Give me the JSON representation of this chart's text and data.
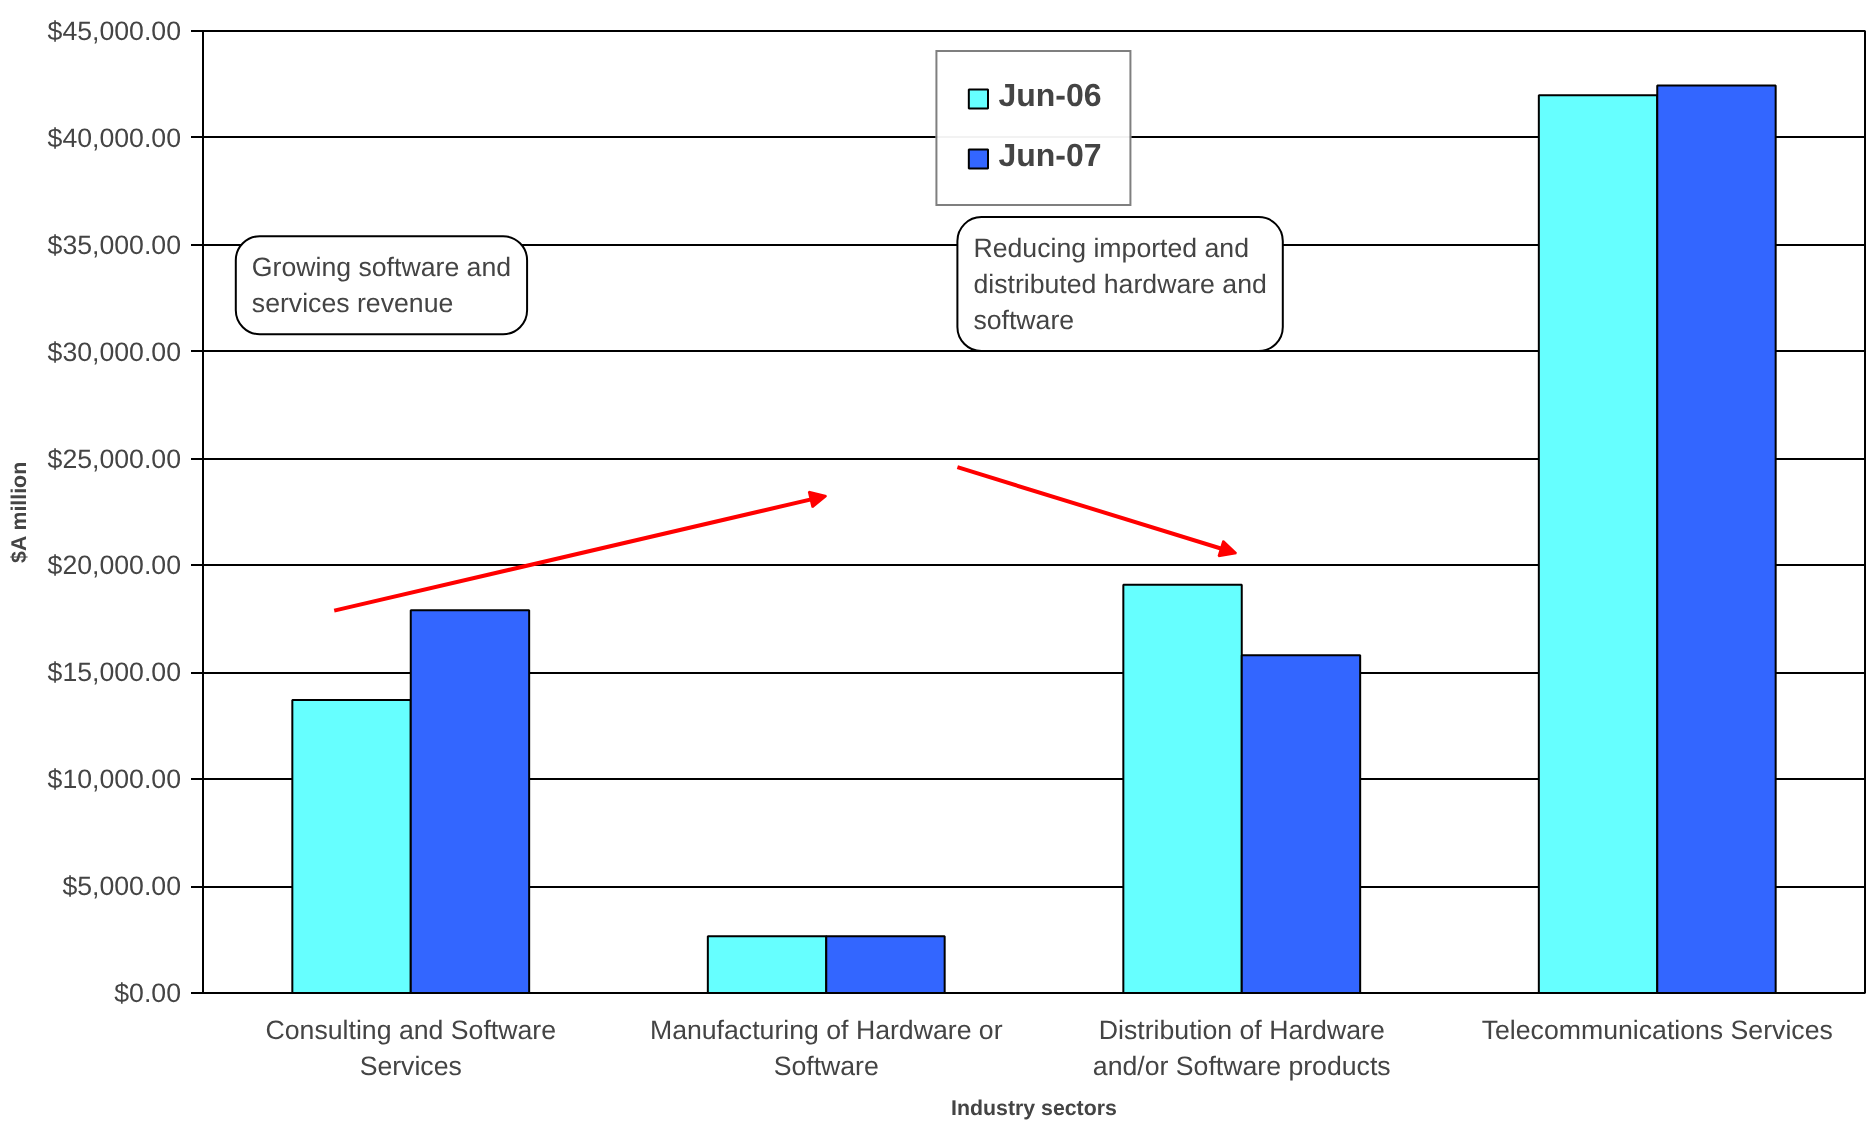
{
  "chart_data": {
    "type": "bar",
    "xlabel": "Industry sectors",
    "ylabel": "$A million",
    "categories": [
      "Consulting and Software Services",
      "Manufacturing of Hardware or Software",
      "Distribution of Hardware and/or Software products",
      "Telecommunications Services"
    ],
    "series": [
      {
        "name": "Jun-06",
        "color": "#66ffff",
        "values": [
          13700,
          2650,
          19100,
          42000
        ]
      },
      {
        "name": "Jun-07",
        "color": "#3366ff",
        "values": [
          17900,
          2650,
          15800,
          42450
        ]
      }
    ],
    "ylim": [
      0,
      45000
    ],
    "yticks": [
      {
        "value": 0,
        "label": "$0.00"
      },
      {
        "value": 5000,
        "label": "$5,000.00"
      },
      {
        "value": 10000,
        "label": "$10,000.00"
      },
      {
        "value": 15000,
        "label": "$15,000.00"
      },
      {
        "value": 20000,
        "label": "$20,000.00"
      },
      {
        "value": 25000,
        "label": "$25,000.00"
      },
      {
        "value": 30000,
        "label": "$30,000.00"
      },
      {
        "value": 35000,
        "label": "$35,000.00"
      },
      {
        "value": 40000,
        "label": "$40,000.00"
      },
      {
        "value": 45000,
        "label": "$45,000.00"
      }
    ],
    "grid": "y",
    "legend": "top",
    "annotations": [
      "Growing software and services revenue",
      "Reducing imported and distributed hardware and software"
    ]
  }
}
